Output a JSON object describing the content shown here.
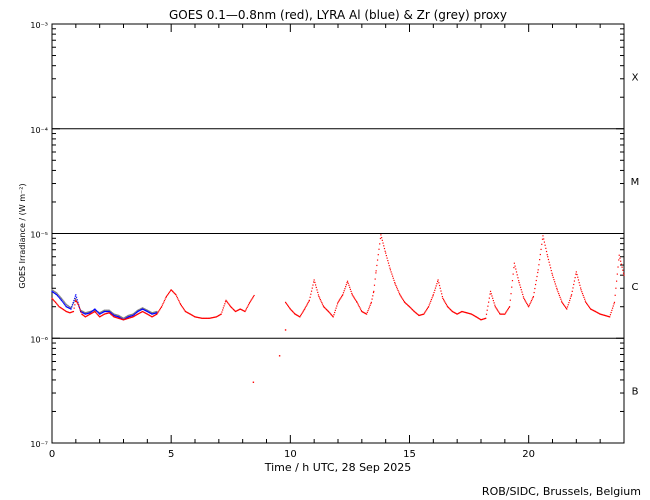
{
  "chart_data": {
    "type": "scatter",
    "title": "GOES 0.1—0.8nm (red), LYRA Al (blue) & Zr (grey) proxy",
    "xlabel": "Time / h UTC, 28 Sep 2025",
    "ylabel": "GOES Irradiance / (W m⁻²)",
    "xlim": [
      0,
      24
    ],
    "ylim": [
      1e-07,
      0.001
    ],
    "yscale": "log",
    "x_ticks": [
      0,
      5,
      10,
      15,
      20
    ],
    "x_tick_labels": [
      "0",
      "5",
      "10",
      "15",
      "20"
    ],
    "y_ticks": [
      1e-07,
      1e-06,
      1e-05,
      0.0001,
      0.001
    ],
    "y_tick_labels": [
      "10⁻⁷",
      "10⁻⁶",
      "10⁻⁵",
      "10⁻⁴",
      "10⁻³"
    ],
    "class_lines": [
      1e-06,
      1e-05,
      0.0001
    ],
    "flare_classes": [
      {
        "label": "B",
        "y": 3.16e-07
      },
      {
        "label": "C",
        "y": 3.16e-06
      },
      {
        "label": "M",
        "y": 3.16e-05
      },
      {
        "label": "X",
        "y": 0.000316
      }
    ],
    "series": [
      {
        "name": "GOES 0.1—0.8nm",
        "color": "#ff0000",
        "x": [
          0.0,
          0.15,
          0.3,
          0.45,
          0.6,
          0.75,
          0.9,
          1.0,
          1.1,
          1.25,
          1.4,
          1.6,
          1.8,
          2.0,
          2.2,
          2.4,
          2.6,
          2.8,
          3.0,
          3.2,
          3.4,
          3.6,
          3.8,
          4.0,
          4.2,
          4.4,
          4.6,
          4.8,
          5.0,
          5.2,
          5.4,
          5.6,
          5.8,
          6.0,
          6.3,
          6.6,
          6.9,
          7.1,
          7.3,
          7.5,
          7.7,
          7.9,
          8.1,
          8.3,
          8.5,
          9.8,
          10.0,
          10.2,
          10.4,
          10.6,
          10.8,
          11.0,
          11.2,
          11.4,
          11.6,
          11.8,
          12.0,
          12.2,
          12.4,
          12.6,
          12.8,
          13.0,
          13.2,
          13.4,
          13.5,
          13.6,
          13.8,
          14.0,
          14.2,
          14.4,
          14.6,
          14.8,
          15.0,
          15.2,
          15.4,
          15.6,
          15.8,
          16.0,
          16.2,
          16.4,
          16.6,
          16.8,
          17.0,
          17.2,
          17.4,
          17.6,
          17.8,
          18.0,
          18.2,
          18.4,
          18.6,
          18.8,
          19.0,
          19.2,
          19.4,
          19.6,
          19.8,
          20.0,
          20.2,
          20.4,
          20.6,
          20.8,
          21.0,
          21.2,
          21.4,
          21.6,
          21.8,
          22.0,
          22.2,
          22.4,
          22.6,
          22.8,
          23.0,
          23.2,
          23.4,
          23.6,
          23.8,
          24.0
        ],
        "y": [
          2.4e-06,
          2.2e-06,
          2e-06,
          1.9e-06,
          1.8e-06,
          1.75e-06,
          1.8e-06,
          2.3e-06,
          2.1e-06,
          1.7e-06,
          1.6e-06,
          1.7e-06,
          1.8e-06,
          1.6e-06,
          1.7e-06,
          1.75e-06,
          1.6e-06,
          1.55e-06,
          1.5e-06,
          1.55e-06,
          1.6e-06,
          1.7e-06,
          1.8e-06,
          1.7e-06,
          1.6e-06,
          1.7e-06,
          2e-06,
          2.5e-06,
          2.9e-06,
          2.6e-06,
          2.1e-06,
          1.8e-06,
          1.7e-06,
          1.6e-06,
          1.55e-06,
          1.55e-06,
          1.6e-06,
          1.7e-06,
          2.3e-06,
          2e-06,
          1.8e-06,
          1.9e-06,
          1.8e-06,
          2.2e-06,
          2.6e-06,
          2.2e-06,
          1.9e-06,
          1.7e-06,
          1.6e-06,
          1.9e-06,
          2.3e-06,
          3.6e-06,
          2.5e-06,
          2e-06,
          1.8e-06,
          1.6e-06,
          2.2e-06,
          2.6e-06,
          3.5e-06,
          2.6e-06,
          2.2e-06,
          1.8e-06,
          1.7e-06,
          2.2e-06,
          2.8e-06,
          4.4e-06,
          9.7e-06,
          6.5e-06,
          4.5e-06,
          3.3e-06,
          2.6e-06,
          2.2e-06,
          2e-06,
          1.8e-06,
          1.65e-06,
          1.7e-06,
          2e-06,
          2.6e-06,
          3.6e-06,
          2.4e-06,
          2e-06,
          1.8e-06,
          1.7e-06,
          1.8e-06,
          1.75e-06,
          1.7e-06,
          1.6e-06,
          1.5e-06,
          1.55e-06,
          2.8e-06,
          2e-06,
          1.7e-06,
          1.7e-06,
          2e-06,
          5.2e-06,
          3.4e-06,
          2.4e-06,
          2e-06,
          2.5e-06,
          4.5e-06,
          9.5e-06,
          6e-06,
          4e-06,
          2.9e-06,
          2.2e-06,
          1.9e-06,
          2.6e-06,
          4.3e-06,
          2.9e-06,
          2.2e-06,
          1.9e-06,
          1.8e-06,
          1.7e-06,
          1.65e-06,
          1.6e-06,
          2.2e-06,
          6.2e-06,
          4e-06
        ],
        "outliers_x": [
          8.45,
          9.55,
          9.8
        ],
        "outliers_y": [
          3.8e-07,
          6.8e-07,
          1.2e-06
        ]
      },
      {
        "name": "LYRA Al",
        "color": "#0000ff",
        "x": [
          0.0,
          0.2,
          0.4,
          0.6,
          0.8,
          1.0,
          1.2,
          1.4,
          1.6,
          1.8,
          2.0,
          2.2,
          2.4,
          2.6,
          2.8,
          3.0,
          3.2,
          3.4,
          3.6,
          3.8,
          4.0,
          4.2,
          4.4
        ],
        "y": [
          2.8e-06,
          2.6e-06,
          2.3e-06,
          2e-06,
          1.9e-06,
          2.6e-06,
          1.8e-06,
          1.7e-06,
          1.75e-06,
          1.9e-06,
          1.7e-06,
          1.8e-06,
          1.8e-06,
          1.65e-06,
          1.6e-06,
          1.5e-06,
          1.6e-06,
          1.65e-06,
          1.8e-06,
          1.9e-06,
          1.8e-06,
          1.7e-06,
          1.75e-06
        ]
      },
      {
        "name": "Zr",
        "color": "#808080",
        "x": [
          0.0,
          0.2,
          0.4,
          0.6,
          0.8,
          1.0,
          1.2,
          1.4,
          1.6,
          1.8,
          2.0,
          2.2,
          2.4,
          2.6,
          2.8,
          3.0,
          3.2,
          3.4,
          3.6,
          3.8,
          4.0,
          4.2,
          4.4
        ],
        "y": [
          2.9e-06,
          2.7e-06,
          2.4e-06,
          2.1e-06,
          1.95e-06,
          2.4e-06,
          1.85e-06,
          1.75e-06,
          1.8e-06,
          1.85e-06,
          1.75e-06,
          1.85e-06,
          1.85e-06,
          1.7e-06,
          1.65e-06,
          1.55e-06,
          1.65e-06,
          1.7e-06,
          1.85e-06,
          1.95e-06,
          1.85e-06,
          1.75e-06,
          1.8e-06
        ]
      }
    ],
    "credit": "ROB/SIDC, Brussels, Belgium"
  }
}
